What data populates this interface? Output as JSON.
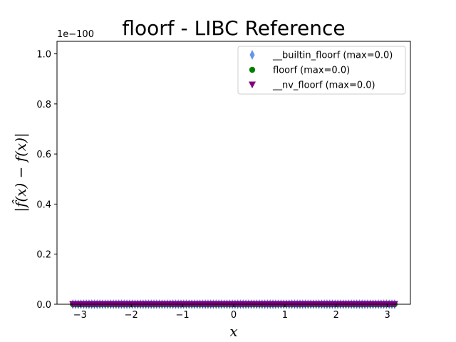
{
  "chart_data": {
    "type": "scatter",
    "title": "floorf - LIBC Reference",
    "xlabel": "x",
    "ylabel": "|f̂(x) − f(x)|",
    "y_offset_text": "1e−100",
    "xlim": [
      -3.45,
      3.45
    ],
    "ylim": [
      0,
      1.05
    ],
    "x_ticks": [
      -3,
      -2,
      -1,
      0,
      1,
      2,
      3
    ],
    "x_tick_labels": [
      "−3",
      "−2",
      "−1",
      "0",
      "1",
      "2",
      "3"
    ],
    "y_ticks": [
      0.0,
      0.2,
      0.4,
      0.6,
      0.8,
      1.0
    ],
    "y_tick_labels": [
      "0.0",
      "0.2",
      "0.4",
      "0.6",
      "0.8",
      "1.0"
    ],
    "x_range": [
      -3.14159,
      3.14159
    ],
    "num_points": 120,
    "legend_position": "top-right",
    "grid": false,
    "series": [
      {
        "name": "__builtin_floorf (max=0.0)",
        "marker": "thin_diamond",
        "color": "#6495ED",
        "constant_value": 0.0
      },
      {
        "name": "floorf (max=0.0)",
        "marker": "circle",
        "color": "#008000",
        "constant_value": 0.0
      },
      {
        "name": "__nv_floorf (max=0.0)",
        "marker": "triangle_down",
        "color": "#800080",
        "constant_value": 0.0
      }
    ]
  }
}
